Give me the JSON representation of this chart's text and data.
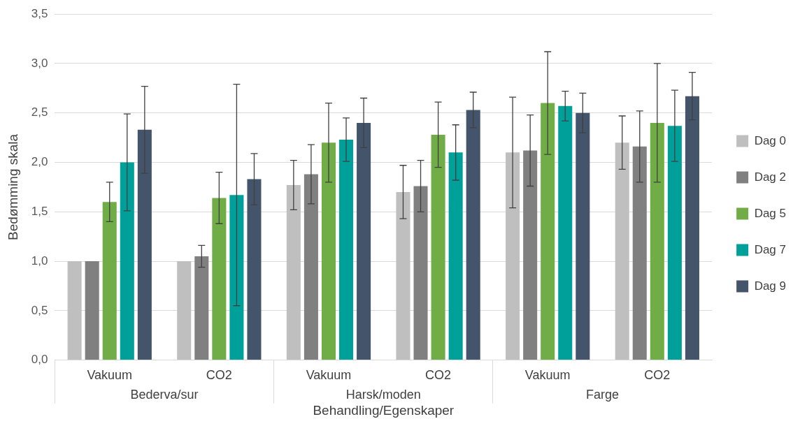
{
  "chart_data": {
    "type": "bar",
    "xlabel": "Behandling/Egenskaper",
    "ylabel": "Bedømming skala",
    "categories": [
      "Vakuum",
      "CO2",
      "Vakuum",
      "CO2",
      "Vakuum",
      "CO2"
    ],
    "series": [
      {
        "name": "Dag 0",
        "color": "#bfbfbf",
        "values": [
          1.0,
          1.0,
          1.77,
          1.7,
          2.1,
          2.2
        ],
        "errors": [
          null,
          null,
          0.25,
          0.27,
          0.56,
          0.27
        ]
      },
      {
        "name": "Dag 2",
        "color": "#808080",
        "values": [
          1.0,
          1.05,
          1.88,
          1.76,
          2.12,
          2.16
        ],
        "errors": [
          null,
          0.11,
          0.3,
          0.26,
          0.36,
          0.36
        ]
      },
      {
        "name": "Dag 5",
        "color": "#70ad47",
        "values": [
          1.6,
          1.64,
          2.2,
          2.28,
          2.6,
          2.4
        ],
        "errors": [
          0.2,
          0.26,
          0.4,
          0.33,
          0.52,
          0.6
        ]
      },
      {
        "name": "Dag 7",
        "color": "#00a09a",
        "values": [
          2.0,
          1.67,
          2.23,
          2.1,
          2.57,
          2.37
        ],
        "errors": [
          0.49,
          1.12,
          0.22,
          0.28,
          0.15,
          0.36
        ]
      },
      {
        "name": "Dag 9",
        "color": "#44546a",
        "values": [
          2.33,
          1.83,
          2.4,
          2.53,
          2.5,
          2.67
        ],
        "errors": [
          0.44,
          0.26,
          0.25,
          0.18,
          0.2,
          0.24
        ]
      }
    ],
    "ylim": [
      0,
      3.5
    ],
    "yticks": [
      {
        "value": 0,
        "label": "0,0"
      },
      {
        "value": 0.5,
        "label": "0,5"
      },
      {
        "value": 1,
        "label": "1,0"
      },
      {
        "value": 1.5,
        "label": "1,5"
      },
      {
        "value": 2,
        "label": "2,0"
      },
      {
        "value": 2.5,
        "label": "2,5"
      },
      {
        "value": 3,
        "label": "3,0"
      },
      {
        "value": 3.5,
        "label": "3,5"
      }
    ],
    "grid": "y",
    "legend": "right",
    "annotations": [
      "Bederva/sur",
      "Harsk/moden",
      "Farge"
    ]
  }
}
